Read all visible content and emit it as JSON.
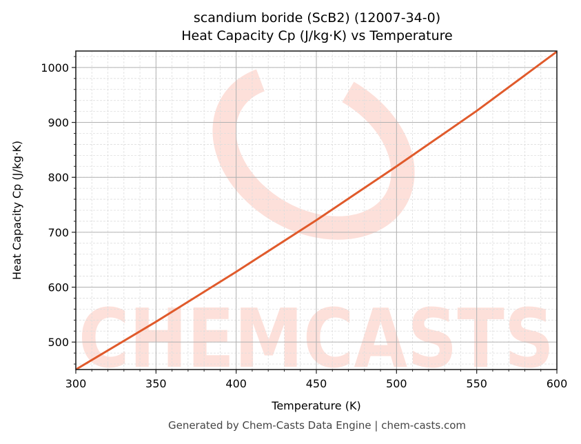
{
  "chart_data": {
    "type": "line",
    "title": "scandium boride (ScB2) (12007-34-0)",
    "subtitle": "Heat Capacity Cp (J/kg·K) vs Temperature",
    "xlabel": "Temperature (K)",
    "ylabel": "Heat Capacity Cp (J/kg·K)",
    "xlim": [
      300,
      600
    ],
    "ylim": [
      450,
      1030
    ],
    "x_ticks": [
      300,
      350,
      400,
      450,
      500,
      550,
      600
    ],
    "y_ticks": [
      500,
      600,
      700,
      800,
      900,
      1000
    ],
    "grid": true,
    "legend": null,
    "series": [
      {
        "name": "Cp",
        "color": "#e05a2b",
        "x": [
          300,
          350,
          400,
          450,
          500,
          550,
          600
        ],
        "values": [
          450,
          537,
          628,
          722,
          820,
          921,
          1029
        ]
      }
    ]
  },
  "footer": "Generated by Chem-Casts Data Engine | chem-casts.com",
  "watermark": {
    "text": "CHEMCASTS",
    "color": "#fde0da"
  }
}
